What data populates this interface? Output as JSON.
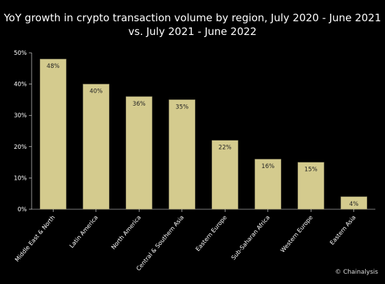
{
  "chart_data": {
    "type": "bar",
    "title_lines": [
      "YoY growth in crypto transaction volume by region, July 2020 - June 2021",
      "vs. July 2021 - June 2022"
    ],
    "categories": [
      "Middle East & North",
      "Latin America",
      "North America",
      "Central & Southern Asia",
      "Eastern Europe",
      "Sub-Saharan Africa",
      "Western Europe",
      "Eastern Asia"
    ],
    "values": [
      48,
      40,
      36,
      35,
      22,
      16,
      15,
      4
    ],
    "data_labels": [
      "48%",
      "40%",
      "36%",
      "35%",
      "22%",
      "16%",
      "15%",
      "4%"
    ],
    "yticks": [
      0,
      10,
      20,
      30,
      40,
      50
    ],
    "ytick_labels": [
      "0%",
      "10%",
      "20%",
      "30%",
      "40%",
      "50%"
    ],
    "ylim": [
      0,
      50
    ],
    "grid": false,
    "bar_color": "#d4cb8e",
    "source": "© Chainalysis"
  }
}
